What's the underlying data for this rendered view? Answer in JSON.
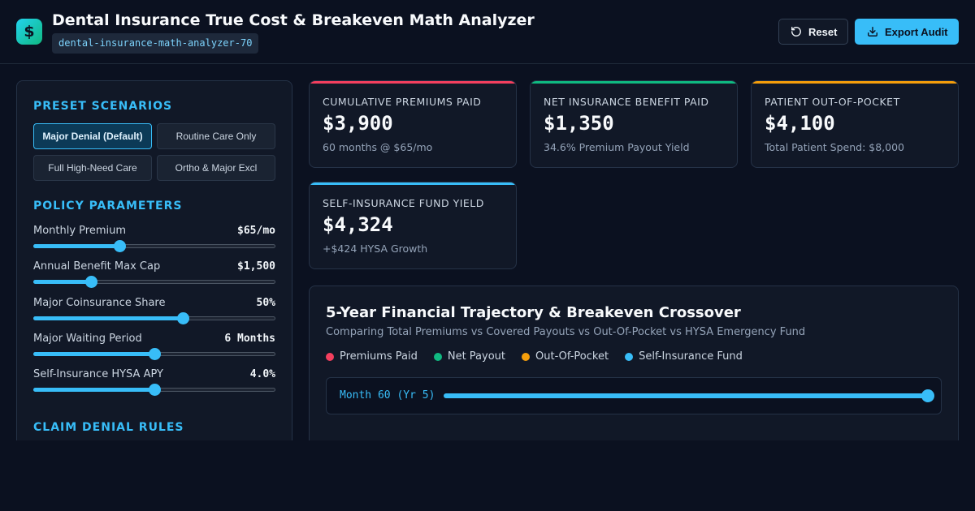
{
  "header": {
    "logo_glyph": "$",
    "title": "Dental Insurance True Cost & Breakeven Math Analyzer",
    "slug": "dental-insurance-math-analyzer-70",
    "reset_label": "Reset",
    "export_label": "Export Audit"
  },
  "sidebar": {
    "presets_title": "PRESET SCENARIOS",
    "presets": [
      {
        "label": "Major Denial (Default)",
        "active": true
      },
      {
        "label": "Routine Care Only",
        "active": false
      },
      {
        "label": "Full High-Need Care",
        "active": false
      },
      {
        "label": "Ortho & Major Excl",
        "active": false
      }
    ],
    "params_title": "POLICY PARAMETERS",
    "params": [
      {
        "label": "Monthly Premium",
        "value": "$65/mo",
        "level": 0.355
      },
      {
        "label": "Annual Benefit Max Cap",
        "value": "$1,500",
        "level": 0.238
      },
      {
        "label": "Major Coinsurance Share",
        "value": "50%",
        "level": 0.618
      },
      {
        "label": "Major Waiting Period",
        "value": "6 Months",
        "level": 0.5
      },
      {
        "label": "Self-Insurance HYSA APY",
        "value": "4.0%",
        "level": 0.5
      }
    ],
    "denial_title": "CLAIM DENIAL RULES"
  },
  "kpis": [
    {
      "label": "CUMULATIVE PREMIUMS PAID",
      "value": "$3,900",
      "sub": "60 months @ $65/mo",
      "color": "#f43f5e"
    },
    {
      "label": "NET INSURANCE BENEFIT PAID",
      "value": "$1,350",
      "sub": "34.6% Premium Payout Yield",
      "color": "#10b981"
    },
    {
      "label": "PATIENT OUT-OF-POCKET",
      "value": "$4,100",
      "sub": "Total Patient Spend: $8,000",
      "color": "#f59e0b"
    },
    {
      "label": "SELF-INSURANCE FUND YIELD",
      "value": "$4,324",
      "sub": "+$424 HYSA Growth",
      "color": "#38bdf8"
    }
  ],
  "chart": {
    "title": "5-Year Financial Trajectory & Breakeven Crossover",
    "subtitle": "Comparing Total Premiums vs Covered Payouts vs Out-Of-Pocket vs HYSA Emergency Fund",
    "legend": [
      {
        "label": "Premiums Paid",
        "color": "#f43f5e"
      },
      {
        "label": "Net Payout",
        "color": "#10b981"
      },
      {
        "label": "Out-Of-Pocket",
        "color": "#f59e0b"
      },
      {
        "label": "Self-Insurance Fund",
        "color": "#38bdf8"
      }
    ],
    "scrubber_label": "Month 60 (Yr 5)",
    "scrubber_level": 1.0
  },
  "colors": {
    "accent": "#38bdf8",
    "background": "#0b1120",
    "panel": "#111827"
  }
}
